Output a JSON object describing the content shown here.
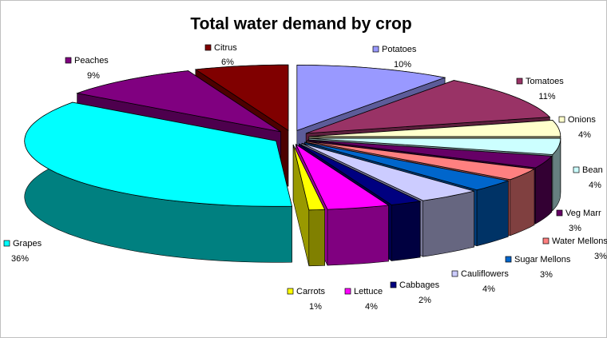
{
  "chart_data": {
    "type": "pie3d",
    "title": "Total water demand by crop",
    "categories": [
      "Potatoes",
      "Tomatoes",
      "Onions",
      "Bean",
      "Veg Marr",
      "Water Mellons",
      "Sugar Mellons",
      "Cauliflowers",
      "Cabbages",
      "Lettuce",
      "Carrots",
      "Grapes",
      "Peaches",
      "Citrus"
    ],
    "values": [
      10,
      11,
      4,
      4,
      3,
      3,
      3,
      4,
      2,
      4,
      1,
      36,
      9,
      6
    ],
    "value_labels": [
      "10%",
      "11%",
      "4%",
      "4%",
      "3%",
      "3%",
      "3%",
      "4%",
      "2%",
      "4%",
      "1%",
      "36%",
      "9%",
      "6%"
    ],
    "colors": [
      "#9999ff",
      "#993366",
      "#ffffcc",
      "#ccffff",
      "#660066",
      "#ff8080",
      "#0066cc",
      "#ccccff",
      "#000080",
      "#ff00ff",
      "#ffff00",
      "#00ffff",
      "#800080",
      "#800000"
    ]
  }
}
